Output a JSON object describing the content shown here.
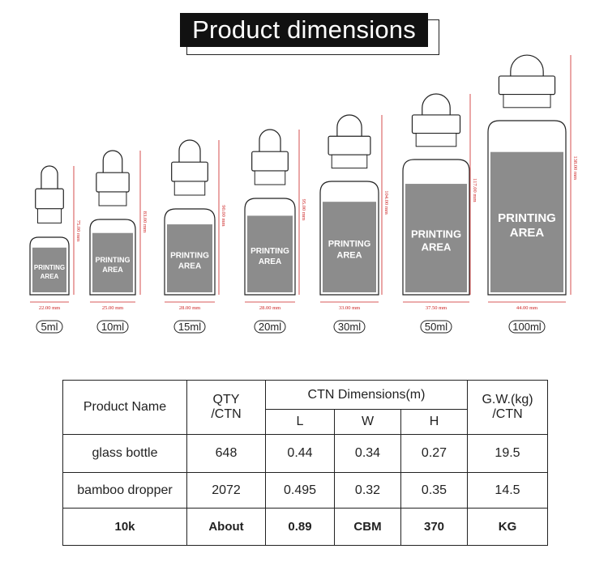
{
  "header": {
    "title": "Product dimensions"
  },
  "bottles": [
    {
      "size": "5ml",
      "width": "22.00 mm",
      "height": "75.00 mm",
      "print": [
        "PRINTING",
        "AREA"
      ]
    },
    {
      "size": "10ml",
      "width": "25.00 mm",
      "height": "83.00 mm",
      "print": [
        "PRINTING",
        "AREA"
      ]
    },
    {
      "size": "15ml",
      "width": "28.00 mm",
      "height": "90.00 mm",
      "print": [
        "PRINTING",
        "AREA"
      ]
    },
    {
      "size": "20ml",
      "width": "28.00 mm",
      "height": "95.00 mm",
      "print": [
        "PRINTING",
        "AREA"
      ]
    },
    {
      "size": "30ml",
      "width": "33.00 mm",
      "height": "104.00 mm",
      "print": [
        "PRINTING",
        "AREA"
      ]
    },
    {
      "size": "50ml",
      "width": "37.50 mm",
      "height": "117.00 mm",
      "print": [
        "PRINTING",
        "AREA"
      ]
    },
    {
      "size": "100ml",
      "width": "44.00 mm",
      "height": "138.00 mm",
      "print": [
        "PRINTING",
        "AREA"
      ]
    }
  ],
  "table": {
    "headers": {
      "product_name": "Product Name",
      "qty_line1": "QTY",
      "qty_line2": "/CTN",
      "ctn_dimensions": "CTN Dimensions(m)",
      "l": "L",
      "w": "W",
      "h": "H",
      "gw_line1": "G.W.(kg)",
      "gw_line2": "/CTN"
    },
    "rows": [
      {
        "name": "glass bottle",
        "qty": "648",
        "l": "0.44",
        "w": "0.34",
        "h": "0.27",
        "gw": "19.5"
      },
      {
        "name": "bamboo dropper",
        "qty": "2072",
        "l": "0.495",
        "w": "0.32",
        "h": "0.35",
        "gw": "14.5"
      }
    ],
    "summary": {
      "name": "10k",
      "qty": "About",
      "l": "0.89",
      "w": "CBM",
      "h": "370",
      "gw": "KG"
    }
  },
  "colors": {
    "print_area": "#8c8c8c",
    "dim_line": "#cc2222",
    "title_bg": "#111111"
  }
}
